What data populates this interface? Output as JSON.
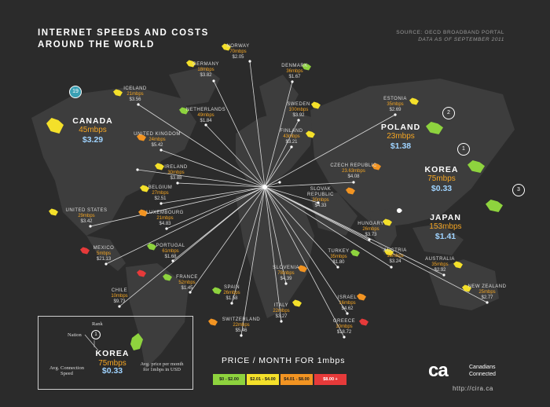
{
  "title": [
    "INTERNET SPEEDS AND COSTS",
    "AROUND THE WORLD"
  ],
  "source": [
    "SOURCE: OECD BROADBAND PORTAL",
    "DATA AS OF SEPTEMBER 2011"
  ],
  "chart_data": {
    "type": "map",
    "title": "INTERNET SPEEDS AND COSTS AROUND THE WORLD",
    "price_legend_title": "PRICE / MONTH FOR 1mbps",
    "price_buckets": [
      {
        "label": "$0 - $2.00",
        "color": "#8ed33e"
      },
      {
        "label": "$2.01 - $4.00",
        "color": "#f4e02a"
      },
      {
        "label": "$4.01 - $8.00",
        "color": "#f29422"
      },
      {
        "label": "$8.00 +",
        "color": "#e63a3a"
      }
    ],
    "countries": [
      {
        "id": "norway",
        "name": "NORWAY",
        "speed": "70mbps",
        "price": "$2.05",
        "bucket": 1
      },
      {
        "id": "germany",
        "name": "GERMANY",
        "speed": "18mbps",
        "price": "$3.82",
        "bucket": 1
      },
      {
        "id": "denmark",
        "name": "DENMARK",
        "speed": "36mbps",
        "price": "$1.67",
        "bucket": 0
      },
      {
        "id": "iceland",
        "name": "ICELAND",
        "speed": "21mbps",
        "price": "$3.56",
        "bucket": 1
      },
      {
        "id": "netherlands",
        "name": "NETHERLANDS",
        "speed": "49mbps",
        "price": "$1.84",
        "bucket": 0
      },
      {
        "id": "sweden",
        "name": "SWEDEN",
        "speed": "100mbps",
        "price": "$3.92",
        "bucket": 1
      },
      {
        "id": "estonia",
        "name": "ESTONIA",
        "speed": "35mbps",
        "price": "$2.69",
        "bucket": 1
      },
      {
        "id": "canada",
        "name": "CANADA",
        "speed": "45mbps",
        "price": "$3.29",
        "bucket": 1,
        "rank": "19"
      },
      {
        "id": "uk",
        "name": "UNITED KINGDOM",
        "speed": "24mbps",
        "price": "$5.42",
        "bucket": 2
      },
      {
        "id": "finland",
        "name": "FINLAND",
        "speed": "43mbps",
        "price": "$3.21",
        "bucket": 1
      },
      {
        "id": "poland",
        "name": "POLAND",
        "speed": "23mbps",
        "price": "$1.38",
        "bucket": 0,
        "rank": "2"
      },
      {
        "id": "ireland",
        "name": "IRELAND",
        "speed": "30mbps",
        "price": "$3.88",
        "bucket": 1
      },
      {
        "id": "czech",
        "name": "CZECH REPUBLIC",
        "speed": "23.63mbps",
        "price": "$4.08",
        "bucket": 2
      },
      {
        "id": "korea",
        "name": "KOREA",
        "speed": "75mbps",
        "price": "$0.33",
        "bucket": 0,
        "rank": "1"
      },
      {
        "id": "belgium",
        "name": "BELGIUM",
        "speed": "27mbps",
        "price": "$2.51",
        "bucket": 1
      },
      {
        "id": "slovak",
        "name": "SLOVAK REPUBLIC",
        "speed": "30mbps",
        "price": "$4.33",
        "bucket": 2
      },
      {
        "id": "usa",
        "name": "UNITED STATES",
        "speed": "29mbps",
        "price": "$3.42",
        "bucket": 1
      },
      {
        "id": "luxembourg",
        "name": "LUXEMBOURG",
        "speed": "21mbps",
        "price": "$4.83",
        "bucket": 2
      },
      {
        "id": "hungary",
        "name": "HUNGARY",
        "speed": "26mbps",
        "price": "$3.73",
        "bucket": 1
      },
      {
        "id": "japan",
        "name": "JAPAN",
        "speed": "153mbps",
        "price": "$1.41",
        "bucket": 0,
        "rank": "3"
      },
      {
        "id": "portugal",
        "name": "PORTUGAL",
        "speed": "61mbps",
        "price": "$1.68",
        "bucket": 0
      },
      {
        "id": "mexico",
        "name": "MEXICO",
        "speed": "5mbps",
        "price": "$21.13",
        "bucket": 3
      },
      {
        "id": "turkey",
        "name": "TURKEY",
        "speed": "35mbps",
        "price": "$1.80",
        "bucket": 0
      },
      {
        "id": "austria",
        "name": "AUSTRIA",
        "speed": "18mbps",
        "price": "$3.24",
        "bucket": 1
      },
      {
        "id": "australia",
        "name": "AUSTRALIA",
        "speed": "35mbps",
        "price": "$2.92",
        "bucket": 1
      },
      {
        "id": "france",
        "name": "FRANCE",
        "speed": "52mbps",
        "price": "$1.45",
        "bucket": 0
      },
      {
        "id": "slovenia",
        "name": "SLOVENIA",
        "speed": "78mbps",
        "price": "$4.39",
        "bucket": 2
      },
      {
        "id": "chile",
        "name": "CHILE",
        "speed": "10mbps",
        "price": "$9.73",
        "bucket": 3
      },
      {
        "id": "spain",
        "name": "SPAIN",
        "speed": "26mbps",
        "price": "$1.58",
        "bucket": 0
      },
      {
        "id": "israel",
        "name": "ISRAEL",
        "speed": "16mbps",
        "price": "$4.62",
        "bucket": 2
      },
      {
        "id": "new_zealand",
        "name": "NEW ZEALAND",
        "speed": "25mbps",
        "price": "$2.77",
        "bucket": 1
      },
      {
        "id": "italy",
        "name": "ITALY",
        "speed": "22mbps",
        "price": "$3.27",
        "bucket": 1
      },
      {
        "id": "switzerland",
        "name": "SWITZERLAND",
        "speed": "22mbps",
        "price": "$5.46",
        "bucket": 2
      },
      {
        "id": "greece",
        "name": "GREECE",
        "speed": "10mbps",
        "price": "$18.72",
        "bucket": 3
      }
    ]
  },
  "key": {
    "rank_label": "Rank",
    "rank_value": "1",
    "nation_label": "Nation",
    "country": "KOREA",
    "speed": "75mbps",
    "price": "$0.33",
    "speed_caption": [
      "Avg. Connection",
      "Speed"
    ],
    "price_caption": [
      "Avg. price per month",
      "for 1mbps in USD"
    ]
  },
  "brand": {
    "logo": "ca",
    "name": [
      "Canadians",
      "Connected"
    ],
    "url": "http://cira.ca"
  }
}
